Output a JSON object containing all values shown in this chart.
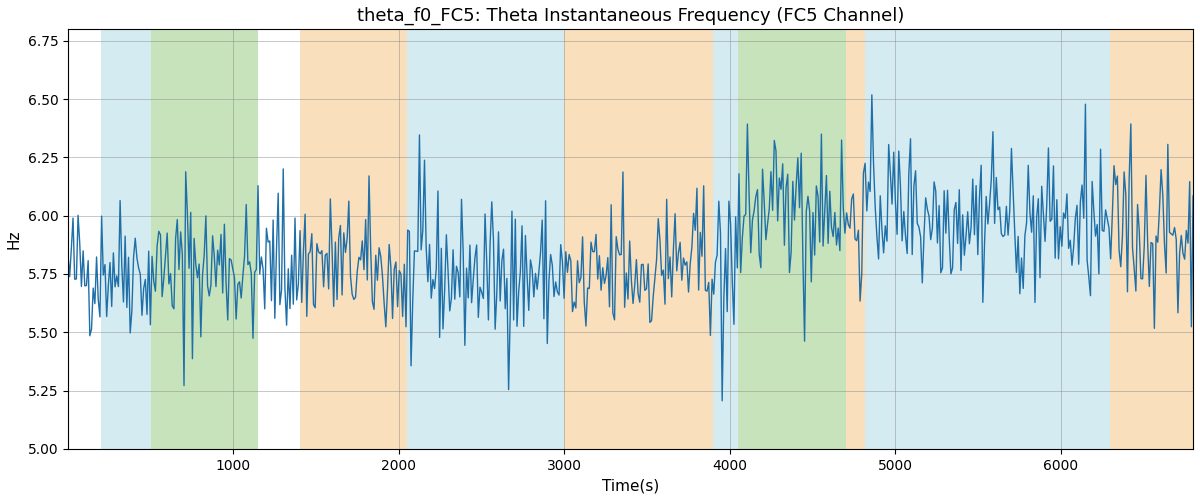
{
  "title": "theta_f0_FC5: Theta Instantaneous Frequency (FC5 Channel)",
  "xlabel": "Time(s)",
  "ylabel": "Hz",
  "ylim": [
    5.0,
    6.8
  ],
  "yticks": [
    5.0,
    5.25,
    5.5,
    5.75,
    6.0,
    6.25,
    6.5,
    6.75
  ],
  "xlim": [
    0,
    6800
  ],
  "xticks": [
    1000,
    2000,
    3000,
    4000,
    5000,
    6000
  ],
  "line_color": "#1f6fa8",
  "line_width": 1.0,
  "bg_regions": [
    {
      "start": 200,
      "end": 500,
      "color": "#add8e6",
      "alpha": 0.5
    },
    {
      "start": 500,
      "end": 1150,
      "color": "#90c878",
      "alpha": 0.5
    },
    {
      "start": 1400,
      "end": 2050,
      "color": "#f5c07a",
      "alpha": 0.5
    },
    {
      "start": 2050,
      "end": 3000,
      "color": "#add8e6",
      "alpha": 0.5
    },
    {
      "start": 3000,
      "end": 3900,
      "color": "#f5c07a",
      "alpha": 0.5
    },
    {
      "start": 3900,
      "end": 4050,
      "color": "#add8e6",
      "alpha": 0.5
    },
    {
      "start": 4050,
      "end": 4700,
      "color": "#90c878",
      "alpha": 0.5
    },
    {
      "start": 4700,
      "end": 4820,
      "color": "#f5c07a",
      "alpha": 0.5
    },
    {
      "start": 4820,
      "end": 6300,
      "color": "#add8e6",
      "alpha": 0.5
    },
    {
      "start": 6300,
      "end": 6800,
      "color": "#f5c07a",
      "alpha": 0.5
    }
  ],
  "seed": 42,
  "n_points": 670,
  "base_freq": 5.78,
  "noise_std": 0.15,
  "title_fontsize": 13,
  "label_fontsize": 11
}
